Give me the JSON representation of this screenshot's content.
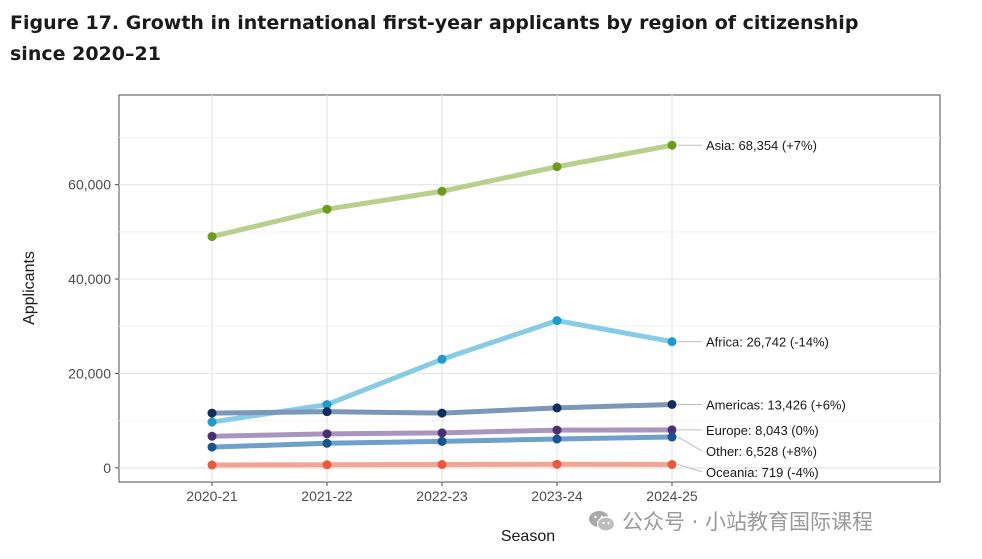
{
  "title": "Figure 17. Growth in international first-year applicants by region of citizenship since 2020–21",
  "watermark": {
    "text": "公众号 · 小站教育国际课程",
    "icon": "wechat-icon"
  },
  "chart_data": {
    "type": "line",
    "categories": [
      "2020-21",
      "2021-22",
      "2022-23",
      "2023-24",
      "2024-25"
    ],
    "xlabel": "Season",
    "ylabel": "Applicants",
    "ylim": [
      -3000,
      79000
    ],
    "yticks": [
      0,
      20000,
      40000,
      60000
    ],
    "ytick_labels": [
      "0",
      "20,000",
      "40,000",
      "60,000"
    ],
    "grid": true,
    "series": [
      {
        "name": "Asia",
        "values": [
          49000,
          54800,
          58600,
          63800,
          68354
        ],
        "line_color": "#b8d08c",
        "point_color": "#6e9a1b",
        "label": "Asia: 68,354 (+7%)"
      },
      {
        "name": "Africa",
        "values": [
          9700,
          13400,
          23000,
          31200,
          26742
        ],
        "line_color": "#87cce6",
        "point_color": "#1b9bce",
        "label": "Africa: 26,742 (-14%)"
      },
      {
        "name": "Americas",
        "values": [
          11600,
          11900,
          11600,
          12700,
          13426
        ],
        "line_color": "#7b98b8",
        "point_color": "#0f2d5e",
        "label": "Americas: 13,426 (+6%)"
      },
      {
        "name": "Europe",
        "values": [
          6700,
          7200,
          7400,
          8000,
          8043
        ],
        "line_color": "#a896bf",
        "point_color": "#4b2f73",
        "label": "Europe: 8,043 (0%)"
      },
      {
        "name": "Other",
        "values": [
          4400,
          5200,
          5600,
          6100,
          6528
        ],
        "line_color": "#6fa0c9",
        "point_color": "#155593",
        "label": "Other: 6,528 (+8%)"
      },
      {
        "name": "Oceania",
        "values": [
          600,
          650,
          700,
          750,
          719
        ],
        "line_color": "#f3a493",
        "point_color": "#ea5a3a",
        "label": "Oceania: 719 (-4%)"
      }
    ]
  }
}
